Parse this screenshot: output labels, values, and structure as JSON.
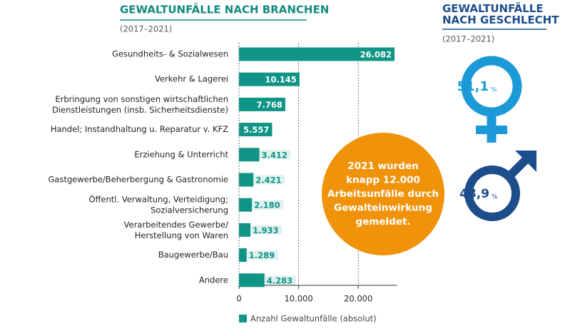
{
  "chart_data": [
    {
      "type": "hbar",
      "title": "GEWALTUNFÄLLE NACH BRANCHEN",
      "subtitle": "(2017–2021)",
      "categories": [
        "Gesundheits- & Sozialwesen",
        "Verkehr & Lagerei",
        "Erbringung von sonstigen wirtschaftlichen\nDienstleistungen (insb. Sicherheitsdienste)",
        "Handel; Instandhaltung u. Reparatur v. KFZ",
        "Erziehung & Unterricht",
        "Gastgewerbe/Beherbergung & Gastronomie",
        "Öffentl. Verwaltung, Verteidigung;\nSozialversicherung",
        "Verarbeitendes Gewerbe/\nHerstellung von Waren",
        "Baugewerbe/Bau",
        "Andere"
      ],
      "series": [
        {
          "name": "Anzahl Gewaltunfälle (absolut)",
          "color": "#0f9485",
          "values": [
            26082,
            10145,
            7768,
            5557,
            3412,
            2421,
            2180,
            1933,
            1289,
            4283
          ],
          "value_labels": [
            "26.082",
            "10.145",
            "7.768",
            "5.557",
            "3.412",
            "2.421",
            "2.180",
            "1.933",
            "1.289",
            "4.283"
          ]
        }
      ],
      "xlim": [
        0,
        26500
      ],
      "xticks": [
        0,
        {
          "value": 10000,
          "label": "10.000"
        },
        {
          "value": 20000,
          "label": "20.000"
        }
      ],
      "grid": true,
      "legend": "bottom",
      "annotation": "2021 wurden\nknapp 12.000\nArbeitsunfälle durch\nGewalteinwirkung\ngemeldet."
    },
    {
      "type": "gender",
      "title": "GEWALTUNFÄLLE\nNACH GESCHLECHT",
      "subtitle": "(2017–2021)",
      "values": [
        51.1,
        48.9
      ],
      "value_labels": [
        "51,1",
        "48,9"
      ],
      "unit": "%",
      "colors": [
        "#1b9ad7",
        "#1e4d8c"
      ]
    }
  ]
}
